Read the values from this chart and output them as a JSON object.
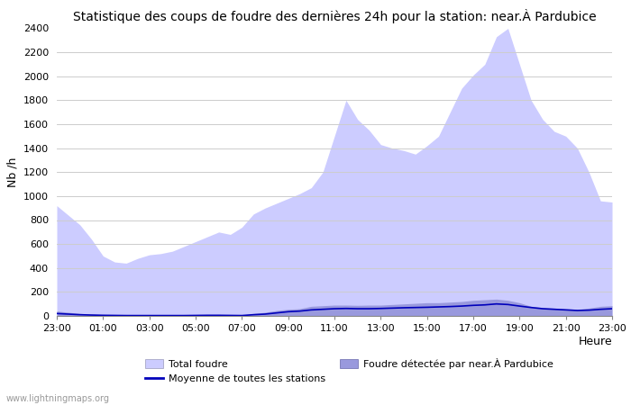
{
  "title": "Statistique des coups de foudre des dernières 24h pour la station: near.À Pardubice",
  "xlabel": "Heure",
  "ylabel": "Nb /h",
  "watermark": "www.lightningmaps.org",
  "ylim": [
    0,
    2400
  ],
  "yticks": [
    0,
    200,
    400,
    600,
    800,
    1000,
    1200,
    1400,
    1600,
    1800,
    2000,
    2200,
    2400
  ],
  "xtick_labels": [
    "23:00",
    "01:00",
    "03:00",
    "05:00",
    "07:00",
    "09:00",
    "11:00",
    "13:00",
    "15:00",
    "17:00",
    "19:00",
    "21:00",
    "23:00"
  ],
  "bg_color": "#ffffff",
  "fill_total_color": "#ccccff",
  "fill_local_color": "#9999dd",
  "line_avg_color": "#0000bb",
  "total_foudre": [
    920,
    840,
    760,
    640,
    500,
    450,
    440,
    480,
    510,
    520,
    540,
    580,
    620,
    660,
    700,
    680,
    740,
    850,
    900,
    940,
    980,
    1020,
    1070,
    1200,
    1500,
    1800,
    1640,
    1550,
    1430,
    1400,
    1380,
    1350,
    1420,
    1500,
    1700,
    1900,
    2010,
    2100,
    2330,
    2400,
    2100,
    1800,
    1640,
    1540,
    1500,
    1400,
    1200,
    960,
    950
  ],
  "local_foudre": [
    40,
    30,
    20,
    15,
    10,
    7,
    5,
    5,
    5,
    5,
    5,
    8,
    10,
    10,
    12,
    8,
    5,
    20,
    30,
    45,
    55,
    60,
    80,
    85,
    90,
    90,
    88,
    90,
    90,
    95,
    100,
    105,
    110,
    110,
    115,
    120,
    130,
    135,
    140,
    130,
    110,
    80,
    70,
    65,
    60,
    55,
    65,
    80,
    85
  ],
  "avg_stations": [
    20,
    15,
    10,
    7,
    5,
    4,
    3,
    3,
    3,
    3,
    3,
    3,
    4,
    5,
    5,
    4,
    3,
    10,
    15,
    25,
    35,
    40,
    50,
    55,
    60,
    62,
    60,
    60,
    62,
    65,
    68,
    70,
    72,
    75,
    78,
    82,
    88,
    92,
    100,
    95,
    82,
    70,
    60,
    55,
    50,
    45,
    48,
    55,
    60
  ],
  "legend_total": "Total foudre",
  "legend_avg": "Moyenne de toutes les stations",
  "legend_local": "Foudre détectée par near.À Pardubice"
}
